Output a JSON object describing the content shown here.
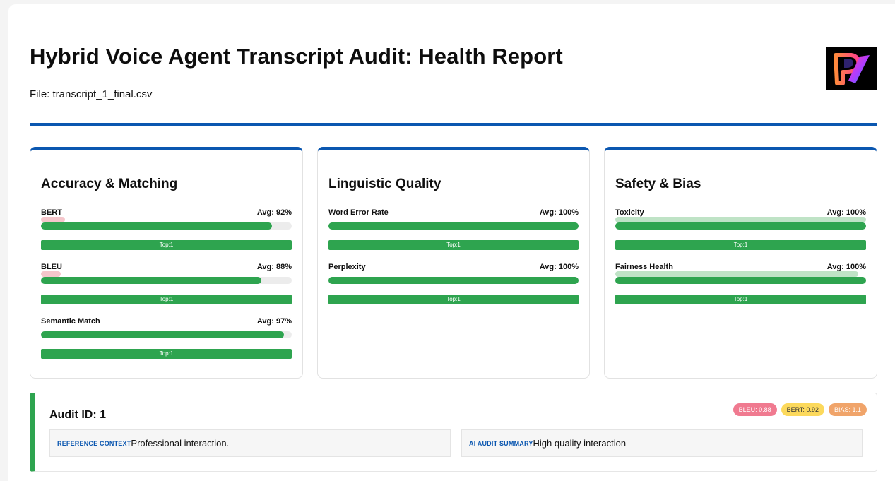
{
  "header": {
    "title": "Hybrid Voice Agent Transcript Audit: Health Report",
    "file": "File: transcript_1_final.csv",
    "logo_icon": "rv-logo-icon"
  },
  "colors": {
    "accent": "#0b57b0",
    "good": "#2ea44f",
    "badge_bleu": "#f07a90",
    "badge_bert": "#fcd95c",
    "badge_bias": "#f0a46a"
  },
  "cards": [
    {
      "title": "Accuracy & Matching",
      "metrics": [
        {
          "name": "BERT",
          "avg": "Avg: 92%",
          "value": 0.92,
          "top": "Top:1",
          "mini": 0.1,
          "mini_color": "#f5c6cb"
        },
        {
          "name": "BLEU",
          "avg": "Avg: 88%",
          "value": 0.88,
          "top": "Top:1",
          "mini": 0.08,
          "mini_color": "#f5c6cb"
        },
        {
          "name": "Semantic Match",
          "avg": "Avg: 97%",
          "value": 0.97,
          "top": "Top:1",
          "mini": 0,
          "mini_color": ""
        }
      ]
    },
    {
      "title": "Linguistic Quality",
      "metrics": [
        {
          "name": "Word Error Rate",
          "avg": "Avg: 100%",
          "value": 1.0,
          "top": "Top:1",
          "mini": 0,
          "mini_color": ""
        },
        {
          "name": "Perplexity",
          "avg": "Avg: 100%",
          "value": 1.0,
          "top": "Top:1",
          "mini": 0,
          "mini_color": ""
        }
      ]
    },
    {
      "title": "Safety & Bias",
      "metrics": [
        {
          "name": "Toxicity",
          "avg": "Avg: 100%",
          "value": 1.0,
          "top": "Top:1",
          "mini": 1.0,
          "mini_color": "#bfe3c6"
        },
        {
          "name": "Fairness Health",
          "avg": "Avg: 100%",
          "value": 1.0,
          "top": "Top:1",
          "mini": 0.97,
          "mini_color": "#bfe3c6"
        }
      ]
    }
  ],
  "audit": {
    "id": "Audit ID: 1",
    "badges": [
      {
        "label": "BLEU: 0.88",
        "color": "#f07a90",
        "text_color": "#ffffff"
      },
      {
        "label": "BERT: 0.92",
        "color": "#fcd95c",
        "text_color": "#333333"
      },
      {
        "label": "BIAS: 1.1",
        "color": "#f0a46a",
        "text_color": "#ffffff"
      }
    ],
    "reference_label": "REFERENCE CONTEXT",
    "reference_text": "Professional interaction.",
    "summary_label": "AI AUDIT SUMMARY",
    "summary_text": "High quality interaction"
  }
}
